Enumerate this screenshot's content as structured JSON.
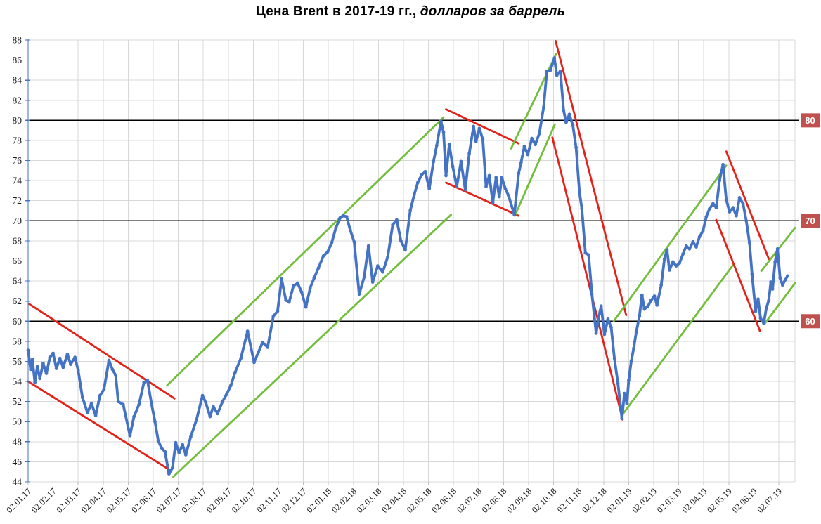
{
  "title": {
    "main": "Цена Brent в 2017-19 гг.,",
    "sub": " долларов за баррель"
  },
  "colors": {
    "price": "#4472C4",
    "trend_up": "#73BE3C",
    "trend_down": "#E3221A",
    "reference_line": "#000000",
    "ref_label_bg": "#C0504D",
    "ref_label_text": "#FFFFFF",
    "grid": "#D8D8D8",
    "y_axis": "#4472C4",
    "x_tick": "#BFBFBF",
    "tick_text": "#1A1A1A"
  },
  "chart_data": {
    "type": "line",
    "title": "Цена Brent в 2017-19 гг., долларов за баррель",
    "xlabel": "",
    "ylabel": "",
    "ylim": [
      44,
      88
    ],
    "y_tick_step": 2,
    "grid": true,
    "legend": "none",
    "x_unit": "months since 02.01.17 (m); m=0 is 02.01.17, m=30 is 02.07.19",
    "y_tick_labels": [
      "88",
      "86",
      "84",
      "82",
      "80",
      "78",
      "76",
      "74",
      "72",
      "70",
      "68",
      "66",
      "64",
      "62",
      "60",
      "58",
      "56",
      "54",
      "52",
      "50",
      "48",
      "46",
      "44"
    ],
    "x_tick_labels": [
      "02.01.17",
      "02.02.17",
      "02.03.17",
      "02.04.17",
      "02.05.17",
      "02.06.17",
      "02.07.17",
      "02.08.17",
      "02.09.17",
      "02.10.17",
      "02.11.17",
      "02.12.17",
      "02.01.18",
      "02.02.18",
      "02.03.18",
      "02.04.18",
      "02.05.18",
      "02.06.18",
      "02.07.18",
      "02.08.18",
      "02.09.18",
      "02.10.18",
      "02.11.18",
      "02.12.18",
      "02.01.19",
      "02.02.19",
      "02.03.19",
      "02.04.19",
      "02.05.19",
      "02.06.19",
      "02.07.19"
    ],
    "reference_lines": [
      {
        "value": 80,
        "label": "80"
      },
      {
        "value": 70,
        "label": "70"
      },
      {
        "value": 60,
        "label": "60"
      }
    ],
    "series": [
      {
        "name": "brent-daily-price",
        "color": "#4472C4",
        "points": [
          [
            0.0,
            57.1
          ],
          [
            0.1,
            55.2
          ],
          [
            0.17,
            56.2
          ],
          [
            0.27,
            53.9
          ],
          [
            0.37,
            55.5
          ],
          [
            0.47,
            54.3
          ],
          [
            0.6,
            55.8
          ],
          [
            0.73,
            54.8
          ],
          [
            0.87,
            56.4
          ],
          [
            1.0,
            56.8
          ],
          [
            1.13,
            55.3
          ],
          [
            1.27,
            56.3
          ],
          [
            1.4,
            55.4
          ],
          [
            1.57,
            56.7
          ],
          [
            1.7,
            55.7
          ],
          [
            1.87,
            56.4
          ],
          [
            2.0,
            55.1
          ],
          [
            2.17,
            52.4
          ],
          [
            2.37,
            50.9
          ],
          [
            2.53,
            51.8
          ],
          [
            2.7,
            50.6
          ],
          [
            2.87,
            52.6
          ],
          [
            3.03,
            53.2
          ],
          [
            3.23,
            56.1
          ],
          [
            3.37,
            55.2
          ],
          [
            3.5,
            54.6
          ],
          [
            3.6,
            52.0
          ],
          [
            3.8,
            51.7
          ],
          [
            4.07,
            48.6
          ],
          [
            4.23,
            50.5
          ],
          [
            4.43,
            51.7
          ],
          [
            4.63,
            53.9
          ],
          [
            4.77,
            54.1
          ],
          [
            4.93,
            51.8
          ],
          [
            5.07,
            50.0
          ],
          [
            5.2,
            48.1
          ],
          [
            5.33,
            47.4
          ],
          [
            5.47,
            47.0
          ],
          [
            5.63,
            44.8
          ],
          [
            5.77,
            45.4
          ],
          [
            5.9,
            47.9
          ],
          [
            6.03,
            46.9
          ],
          [
            6.17,
            47.7
          ],
          [
            6.3,
            46.7
          ],
          [
            6.5,
            48.5
          ],
          [
            6.73,
            50.2
          ],
          [
            6.97,
            52.6
          ],
          [
            7.1,
            51.9
          ],
          [
            7.27,
            50.5
          ],
          [
            7.4,
            51.5
          ],
          [
            7.57,
            50.8
          ],
          [
            7.77,
            52.0
          ],
          [
            7.93,
            52.7
          ],
          [
            8.1,
            53.6
          ],
          [
            8.27,
            54.9
          ],
          [
            8.5,
            56.3
          ],
          [
            8.77,
            59.0
          ],
          [
            9.03,
            55.9
          ],
          [
            9.2,
            56.9
          ],
          [
            9.37,
            57.9
          ],
          [
            9.57,
            57.4
          ],
          [
            9.8,
            60.5
          ],
          [
            9.97,
            61.0
          ],
          [
            10.13,
            64.2
          ],
          [
            10.3,
            62.1
          ],
          [
            10.43,
            61.9
          ],
          [
            10.6,
            63.5
          ],
          [
            10.77,
            63.8
          ],
          [
            10.93,
            62.9
          ],
          [
            11.1,
            61.4
          ],
          [
            11.27,
            63.3
          ],
          [
            11.43,
            64.3
          ],
          [
            11.6,
            65.3
          ],
          [
            11.8,
            66.5
          ],
          [
            11.97,
            66.9
          ],
          [
            12.13,
            67.8
          ],
          [
            12.3,
            69.3
          ],
          [
            12.47,
            70.3
          ],
          [
            12.6,
            70.5
          ],
          [
            12.73,
            70.4
          ],
          [
            12.87,
            69.1
          ],
          [
            13.03,
            67.9
          ],
          [
            13.23,
            62.7
          ],
          [
            13.43,
            64.4
          ],
          [
            13.6,
            67.5
          ],
          [
            13.77,
            63.9
          ],
          [
            13.97,
            65.5
          ],
          [
            14.17,
            64.9
          ],
          [
            14.37,
            66.4
          ],
          [
            14.57,
            69.6
          ],
          [
            14.73,
            70.1
          ],
          [
            14.9,
            68.0
          ],
          [
            15.07,
            67.1
          ],
          [
            15.27,
            71.0
          ],
          [
            15.43,
            72.6
          ],
          [
            15.57,
            73.8
          ],
          [
            15.73,
            74.6
          ],
          [
            15.87,
            74.9
          ],
          [
            16.03,
            73.2
          ],
          [
            16.2,
            75.9
          ],
          [
            16.33,
            77.5
          ],
          [
            16.5,
            79.9
          ],
          [
            16.6,
            78.8
          ],
          [
            16.7,
            74.5
          ],
          [
            16.83,
            77.6
          ],
          [
            16.97,
            75.4
          ],
          [
            17.13,
            73.4
          ],
          [
            17.3,
            75.9
          ],
          [
            17.47,
            73.1
          ],
          [
            17.63,
            76.7
          ],
          [
            17.8,
            79.4
          ],
          [
            17.9,
            77.9
          ],
          [
            18.03,
            79.2
          ],
          [
            18.17,
            78.1
          ],
          [
            18.3,
            73.4
          ],
          [
            18.43,
            74.5
          ],
          [
            18.57,
            71.8
          ],
          [
            18.7,
            74.3
          ],
          [
            18.83,
            72.4
          ],
          [
            18.93,
            74.3
          ],
          [
            19.07,
            73.2
          ],
          [
            19.2,
            72.5
          ],
          [
            19.43,
            70.6
          ],
          [
            19.6,
            74.7
          ],
          [
            19.7,
            75.8
          ],
          [
            19.83,
            77.4
          ],
          [
            19.97,
            76.6
          ],
          [
            20.13,
            78.2
          ],
          [
            20.27,
            77.6
          ],
          [
            20.43,
            78.7
          ],
          [
            20.6,
            81.3
          ],
          [
            20.73,
            84.9
          ],
          [
            20.87,
            85.0
          ],
          [
            21.03,
            86.2
          ],
          [
            21.13,
            84.5
          ],
          [
            21.27,
            84.9
          ],
          [
            21.4,
            81.0
          ],
          [
            21.5,
            79.8
          ],
          [
            21.63,
            80.6
          ],
          [
            21.77,
            79.5
          ],
          [
            21.9,
            77.3
          ],
          [
            22.03,
            72.9
          ],
          [
            22.13,
            71.2
          ],
          [
            22.27,
            66.8
          ],
          [
            22.4,
            66.6
          ],
          [
            22.53,
            62.7
          ],
          [
            22.7,
            58.8
          ],
          [
            22.8,
            60.4
          ],
          [
            22.9,
            61.5
          ],
          [
            23.03,
            58.7
          ],
          [
            23.17,
            60.2
          ],
          [
            23.3,
            59.4
          ],
          [
            23.43,
            56.3
          ],
          [
            23.57,
            53.8
          ],
          [
            23.73,
            50.3
          ],
          [
            23.83,
            52.8
          ],
          [
            23.93,
            51.8
          ],
          [
            24.0,
            54.1
          ],
          [
            24.1,
            56.0
          ],
          [
            24.2,
            57.3
          ],
          [
            24.3,
            58.9
          ],
          [
            24.43,
            60.5
          ],
          [
            24.53,
            62.6
          ],
          [
            24.63,
            61.2
          ],
          [
            24.77,
            61.5
          ],
          [
            24.9,
            62.1
          ],
          [
            25.03,
            62.5
          ],
          [
            25.13,
            61.6
          ],
          [
            25.3,
            63.6
          ],
          [
            25.43,
            66.2
          ],
          [
            25.53,
            67.1
          ],
          [
            25.63,
            65.1
          ],
          [
            25.77,
            65.9
          ],
          [
            25.9,
            65.5
          ],
          [
            26.03,
            65.8
          ],
          [
            26.17,
            66.7
          ],
          [
            26.3,
            67.5
          ],
          [
            26.43,
            67.2
          ],
          [
            26.57,
            67.9
          ],
          [
            26.7,
            67.4
          ],
          [
            26.83,
            68.4
          ],
          [
            26.97,
            69.0
          ],
          [
            27.1,
            70.4
          ],
          [
            27.23,
            71.2
          ],
          [
            27.37,
            71.7
          ],
          [
            27.5,
            71.3
          ],
          [
            27.63,
            74.0
          ],
          [
            27.77,
            75.6
          ],
          [
            27.9,
            72.1
          ],
          [
            28.03,
            70.9
          ],
          [
            28.17,
            71.3
          ],
          [
            28.3,
            70.5
          ],
          [
            28.43,
            72.3
          ],
          [
            28.57,
            71.7
          ],
          [
            28.7,
            70.0
          ],
          [
            28.83,
            67.8
          ],
          [
            28.93,
            64.7
          ],
          [
            29.07,
            61.0
          ],
          [
            29.17,
            62.2
          ],
          [
            29.27,
            60.3
          ],
          [
            29.4,
            59.8
          ],
          [
            29.5,
            61.3
          ],
          [
            29.6,
            62.1
          ],
          [
            29.68,
            63.9
          ],
          [
            29.75,
            63.2
          ],
          [
            29.85,
            65.9
          ],
          [
            29.95,
            67.2
          ],
          [
            30.05,
            64.3
          ],
          [
            30.15,
            63.6
          ],
          [
            30.25,
            64.1
          ],
          [
            30.35,
            64.5
          ]
        ]
      }
    ],
    "trend_lines": [
      {
        "name": "trend-down-2017-upper",
        "direction": "down",
        "color": "#E3221A",
        "from": [
          0.05,
          61.7
        ],
        "to": [
          5.85,
          52.3
        ]
      },
      {
        "name": "trend-down-2017-lower",
        "direction": "down",
        "color": "#E3221A",
        "from": [
          0.0,
          54.0
        ],
        "to": [
          5.65,
          45.2
        ]
      },
      {
        "name": "trend-up-2017-18-upper",
        "direction": "up",
        "color": "#73BE3C",
        "from": [
          5.55,
          53.6
        ],
        "to": [
          16.6,
          80.3
        ]
      },
      {
        "name": "trend-up-2017-18-lower",
        "direction": "up",
        "color": "#73BE3C",
        "from": [
          5.8,
          44.5
        ],
        "to": [
          16.9,
          70.6
        ]
      },
      {
        "name": "trend-down-mid-2018-upper",
        "direction": "down",
        "color": "#E3221A",
        "from": [
          16.7,
          81.1
        ],
        "to": [
          19.6,
          77.7
        ]
      },
      {
        "name": "trend-down-mid-2018-lower",
        "direction": "down",
        "color": "#E3221A",
        "from": [
          16.7,
          73.8
        ],
        "to": [
          19.6,
          70.5
        ]
      },
      {
        "name": "trend-up-aug-oct-2018-upper",
        "direction": "up",
        "color": "#73BE3C",
        "from": [
          19.3,
          77.2
        ],
        "to": [
          21.1,
          86.6
        ]
      },
      {
        "name": "trend-up-aug-oct-2018-lower",
        "direction": "up",
        "color": "#73BE3C",
        "from": [
          19.45,
          70.5
        ],
        "to": [
          21.05,
          79.6
        ]
      },
      {
        "name": "trend-down-q4-2018-upper",
        "direction": "down",
        "color": "#E3221A",
        "from": [
          21.08,
          87.9
        ],
        "to": [
          23.9,
          60.6
        ]
      },
      {
        "name": "trend-down-q4-2018-lower",
        "direction": "down",
        "color": "#E3221A",
        "from": [
          20.95,
          78.3
        ],
        "to": [
          23.76,
          50.2
        ]
      },
      {
        "name": "trend-up-2019-upper",
        "direction": "up",
        "color": "#73BE3C",
        "from": [
          23.4,
          60.0
        ],
        "to": [
          27.9,
          75.5
        ]
      },
      {
        "name": "trend-up-2019-lower",
        "direction": "up",
        "color": "#73BE3C",
        "from": [
          23.78,
          50.8
        ],
        "to": [
          28.17,
          65.6
        ]
      },
      {
        "name": "trend-down-may-jun-2019-upper",
        "direction": "down",
        "color": "#E3221A",
        "from": [
          27.9,
          76.9
        ],
        "to": [
          29.6,
          66.2
        ]
      },
      {
        "name": "trend-down-may-jun-2019-lower",
        "direction": "down",
        "color": "#E3221A",
        "from": [
          27.5,
          70.1
        ],
        "to": [
          29.25,
          59.0
        ]
      },
      {
        "name": "trend-up-jul-2019-upper",
        "direction": "up",
        "color": "#73BE3C",
        "from": [
          29.3,
          65.0
        ],
        "to": [
          30.65,
          69.3
        ]
      },
      {
        "name": "trend-up-jul-2019-lower",
        "direction": "up",
        "color": "#73BE3C",
        "from": [
          29.45,
          59.8
        ],
        "to": [
          30.65,
          63.8
        ]
      }
    ]
  }
}
